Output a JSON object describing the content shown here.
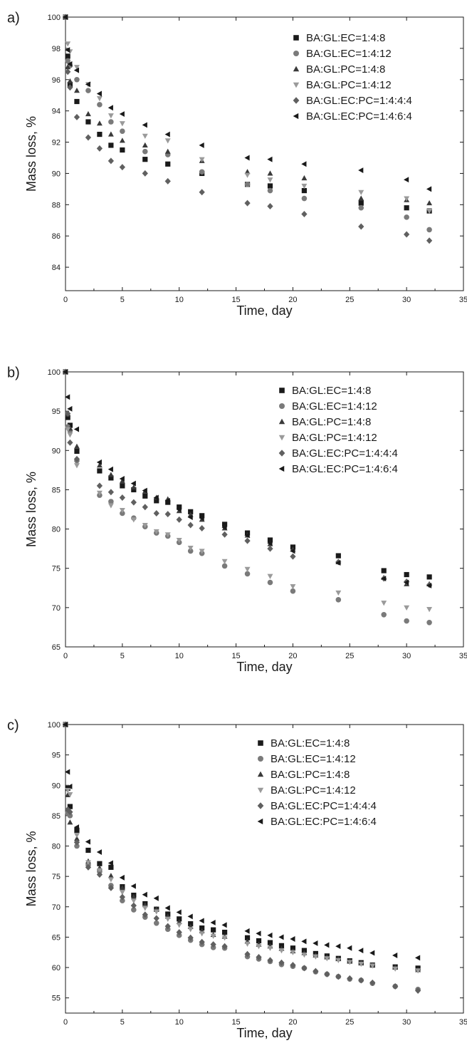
{
  "chart_data": [
    {
      "panel": "a)",
      "type": "scatter",
      "title": "",
      "xlabel": "Time, day",
      "ylabel": "Mass loss, %",
      "xlim": [
        0,
        35
      ],
      "ylim": [
        82.5,
        100
      ],
      "xticks": [
        0,
        5,
        10,
        15,
        20,
        25,
        30,
        35
      ],
      "yticks": [
        84,
        86,
        88,
        90,
        92,
        94,
        96,
        98,
        100
      ],
      "grid": false,
      "legend_position": "top-right",
      "series": [
        {
          "name": "BA:GL:EC=1:4:8",
          "marker": "square",
          "color": "#1a1a1a",
          "x": [
            0,
            0.2,
            0.4,
            1,
            2,
            3,
            4,
            5,
            7,
            9,
            12,
            16,
            18,
            21,
            26,
            30,
            32
          ],
          "y": [
            100,
            97.5,
            95.7,
            94.6,
            93.3,
            92.5,
            91.8,
            91.5,
            90.9,
            90.6,
            90.0,
            89.3,
            89.2,
            88.9,
            88.1,
            87.8,
            87.6
          ]
        },
        {
          "name": "BA:GL:EC=1:4:12",
          "marker": "circle",
          "color": "#7a7a7a",
          "x": [
            0,
            0.2,
            0.4,
            1,
            2,
            3,
            4,
            5,
            7,
            9,
            12,
            16,
            18,
            21,
            26,
            30,
            32
          ],
          "y": [
            100,
            97.2,
            96.9,
            96.0,
            95.3,
            94.4,
            93.3,
            92.7,
            91.4,
            91.2,
            90.1,
            89.3,
            88.9,
            88.4,
            87.8,
            87.2,
            86.4
          ]
        },
        {
          "name": "BA:GL:PC=1:4:8",
          "marker": "triangle-up",
          "color": "#3a3a3a",
          "x": [
            0,
            0.2,
            0.4,
            1,
            2,
            3,
            4,
            5,
            7,
            9,
            12,
            16,
            18,
            21,
            26,
            30,
            32
          ],
          "y": [
            100,
            96.8,
            95.9,
            95.3,
            93.8,
            93.2,
            92.5,
            92.1,
            91.8,
            91.4,
            90.8,
            90.1,
            90.0,
            89.7,
            88.4,
            88.3,
            88.1
          ]
        },
        {
          "name": "BA:GL:PC=1:4:12",
          "marker": "triangle-down",
          "color": "#9a9a9a",
          "x": [
            0,
            0.2,
            0.4,
            1,
            2,
            3,
            4,
            5,
            7,
            9,
            12,
            16,
            18,
            21,
            26,
            30,
            32
          ],
          "y": [
            100,
            98.3,
            97.8,
            96.8,
            95.7,
            94.8,
            93.7,
            93.2,
            92.4,
            92.1,
            90.9,
            89.9,
            89.6,
            89.2,
            88.8,
            88.4,
            87.6
          ]
        },
        {
          "name": "BA:GL:EC:PC=1:4:4:4",
          "marker": "diamond",
          "color": "#606060",
          "x": [
            0,
            0.2,
            0.4,
            1,
            2,
            3,
            4,
            5,
            7,
            9,
            12,
            16,
            18,
            21,
            26,
            30,
            32
          ],
          "y": [
            100,
            96.5,
            95.5,
            93.6,
            92.3,
            91.6,
            90.8,
            90.4,
            90.0,
            89.5,
            88.8,
            88.1,
            87.9,
            87.4,
            86.6,
            86.1,
            85.7
          ]
        },
        {
          "name": "BA:GL:EC:PC=1:4:6:4",
          "marker": "triangle-left",
          "color": "#1a1a1a",
          "x": [
            0,
            0.2,
            0.4,
            1,
            2,
            3,
            4,
            5,
            7,
            9,
            12,
            16,
            18,
            21,
            26,
            30,
            32
          ],
          "y": [
            100,
            97.9,
            97.0,
            96.6,
            95.7,
            95.1,
            94.2,
            93.8,
            93.1,
            92.5,
            91.8,
            91.0,
            90.9,
            90.6,
            90.2,
            89.6,
            89.0
          ]
        }
      ]
    },
    {
      "panel": "b)",
      "type": "scatter",
      "title": "",
      "xlabel": "Time, day",
      "ylabel": "Mass loss, %",
      "xlim": [
        0,
        35
      ],
      "ylim": [
        65,
        100
      ],
      "xticks": [
        0,
        5,
        10,
        15,
        20,
        25,
        30,
        35
      ],
      "yticks": [
        65,
        70,
        75,
        80,
        85,
        90,
        95,
        100
      ],
      "grid": false,
      "legend_position": "top-right",
      "series": [
        {
          "name": "BA:GL:EC=1:4:8",
          "marker": "square",
          "color": "#1a1a1a",
          "x": [
            0,
            0.2,
            0.4,
            1,
            3,
            4,
            5,
            6,
            7,
            8,
            9,
            10,
            11,
            12,
            14,
            16,
            18,
            20,
            24,
            28,
            30,
            32
          ],
          "y": [
            100,
            94.2,
            93.2,
            89.9,
            87.4,
            86.5,
            85.5,
            85.0,
            84.2,
            83.6,
            83.4,
            82.8,
            82.2,
            81.7,
            80.6,
            79.5,
            78.6,
            77.7,
            76.6,
            74.7,
            74.2,
            73.9
          ]
        },
        {
          "name": "BA:GL:EC=1:4:12",
          "marker": "circle",
          "color": "#7a7a7a",
          "x": [
            0,
            0.2,
            0.4,
            1,
            3,
            4,
            5,
            6,
            7,
            8,
            9,
            10,
            11,
            12,
            14,
            16,
            18,
            20,
            24,
            28,
            30,
            32
          ],
          "y": [
            100,
            93.0,
            92.5,
            88.7,
            84.3,
            83.5,
            82.0,
            81.4,
            80.3,
            79.5,
            79.1,
            78.3,
            77.2,
            76.9,
            75.3,
            74.3,
            73.2,
            72.1,
            71.0,
            69.1,
            68.3,
            68.1
          ]
        },
        {
          "name": "BA:GL:PC=1:4:8",
          "marker": "triangle-up",
          "color": "#3a3a3a",
          "x": [
            0,
            0.2,
            0.4,
            1,
            3,
            4,
            5,
            6,
            7,
            8,
            9,
            10,
            11,
            12,
            14,
            16,
            18,
            20,
            24,
            28,
            30,
            32
          ],
          "y": [
            100,
            94.6,
            92.8,
            90.5,
            88.1,
            86.9,
            86.1,
            85.3,
            84.8,
            84.0,
            83.8,
            82.3,
            81.8,
            81.2,
            80.1,
            79.2,
            78.1,
            77.4,
            75.8,
            73.8,
            73.0,
            73.0
          ]
        },
        {
          "name": "BA:GL:PC=1:4:12",
          "marker": "triangle-down",
          "color": "#9a9a9a",
          "x": [
            0,
            0.2,
            0.4,
            1,
            3,
            4,
            5,
            6,
            7,
            8,
            9,
            10,
            11,
            12,
            14,
            16,
            18,
            20,
            24,
            28,
            30,
            32
          ],
          "y": [
            100,
            92.7,
            92.0,
            88.1,
            84.6,
            83.0,
            82.4,
            81.2,
            80.5,
            79.7,
            79.3,
            78.6,
            77.6,
            77.2,
            75.9,
            74.9,
            74.0,
            72.7,
            71.9,
            70.6,
            70.0,
            69.8
          ]
        },
        {
          "name": "BA:GL:EC:PC=1:4:4:4",
          "marker": "diamond",
          "color": "#606060",
          "x": [
            0,
            0.2,
            0.4,
            1,
            3,
            4,
            5,
            6,
            7,
            8,
            9,
            10,
            11,
            12,
            14,
            16,
            18,
            20,
            24,
            28,
            30,
            32
          ],
          "y": [
            100,
            94.7,
            91.0,
            88.9,
            85.5,
            84.7,
            84.0,
            83.4,
            82.8,
            82.0,
            81.9,
            81.2,
            80.5,
            80.1,
            79.3,
            78.5,
            77.5,
            76.5,
            75.8,
            73.7,
            73.3,
            72.9
          ]
        },
        {
          "name": "BA:GL:EC:PC=1:4:6:4",
          "marker": "triangle-left",
          "color": "#1a1a1a",
          "x": [
            0,
            0.2,
            0.4,
            1,
            3,
            4,
            5,
            6,
            7,
            8,
            9,
            10,
            11,
            12,
            14,
            16,
            18,
            20,
            24,
            28,
            30,
            32
          ],
          "y": [
            100,
            96.8,
            95.3,
            92.7,
            88.5,
            87.6,
            86.4,
            85.8,
            84.9,
            84.0,
            83.6,
            82.5,
            81.5,
            81.4,
            80.2,
            79.2,
            78.2,
            77.2,
            75.7,
            73.7,
            73.2,
            72.8
          ]
        }
      ]
    },
    {
      "panel": "c)",
      "type": "scatter",
      "title": "",
      "xlabel": "Time, day",
      "ylabel": "Mass loss, %",
      "xlim": [
        0,
        35
      ],
      "ylim": [
        52.5,
        100
      ],
      "xticks": [
        0,
        5,
        10,
        15,
        20,
        25,
        30,
        35
      ],
      "yticks": [
        55,
        60,
        65,
        70,
        75,
        80,
        85,
        90,
        95,
        100
      ],
      "grid": false,
      "legend_position": "top-right",
      "series": [
        {
          "name": "BA:GL:EC=1:4:8",
          "marker": "square",
          "color": "#1a1a1a",
          "x": [
            0,
            0.2,
            0.4,
            1,
            2,
            3,
            4,
            5,
            6,
            7,
            8,
            9,
            10,
            11,
            12,
            13,
            14,
            16,
            17,
            18,
            19,
            20,
            21,
            22,
            23,
            24,
            25,
            26,
            27,
            29,
            31
          ],
          "y": [
            100,
            89.5,
            86.5,
            82.6,
            79.3,
            77.1,
            76.5,
            73.3,
            71.9,
            70.5,
            69.6,
            68.8,
            68.0,
            67.2,
            66.5,
            66.2,
            65.8,
            64.9,
            64.4,
            64.1,
            63.6,
            63.2,
            62.8,
            62.3,
            61.9,
            61.5,
            61.1,
            60.8,
            60.4,
            60.1,
            59.9
          ]
        },
        {
          "name": "BA:GL:EC=1:4:12",
          "marker": "circle",
          "color": "#7a7a7a",
          "x": [
            0,
            0.2,
            0.4,
            1,
            2,
            3,
            4,
            5,
            6,
            7,
            8,
            9,
            10,
            11,
            12,
            13,
            14,
            16,
            17,
            18,
            19,
            20,
            21,
            22,
            23,
            24,
            25,
            26,
            27,
            29,
            31
          ],
          "y": [
            100,
            85.5,
            85.0,
            80.0,
            76.9,
            75.8,
            73.5,
            71.0,
            69.5,
            68.3,
            67.3,
            66.3,
            65.3,
            64.5,
            63.8,
            63.3,
            63.2,
            61.8,
            61.4,
            61.0,
            60.5,
            60.2,
            59.9,
            59.3,
            58.9,
            58.5,
            58.1,
            57.9,
            57.4,
            56.9,
            56.4
          ]
        },
        {
          "name": "BA:GL:PC=1:4:8",
          "marker": "triangle-up",
          "color": "#3a3a3a",
          "x": [
            0,
            0.2,
            0.4,
            1,
            2,
            3,
            4,
            5,
            6,
            7,
            8,
            9,
            10,
            11,
            12,
            13,
            14,
            16,
            17,
            18,
            19,
            20,
            21,
            22,
            23,
            24,
            25,
            26,
            27,
            29,
            31
          ],
          "y": [
            100,
            88.4,
            83.9,
            81.2,
            77.5,
            76.4,
            75.1,
            73.1,
            71.6,
            70.3,
            69.6,
            68.4,
            67.5,
            66.7,
            66.0,
            65.4,
            65.1,
            64.3,
            63.8,
            63.5,
            63.1,
            62.7,
            62.4,
            62.0,
            61.7,
            61.4,
            61.0,
            60.7,
            60.4,
            60.0,
            59.6
          ]
        },
        {
          "name": "BA:GL:PC=1:4:12",
          "marker": "triangle-down",
          "color": "#9a9a9a",
          "x": [
            0,
            0.2,
            0.4,
            1,
            2,
            3,
            4,
            5,
            6,
            7,
            8,
            9,
            10,
            11,
            12,
            13,
            14,
            16,
            17,
            18,
            19,
            20,
            21,
            22,
            23,
            24,
            25,
            26,
            27,
            29,
            31
          ],
          "y": [
            100,
            89.2,
            88.5,
            81.8,
            77.3,
            76.0,
            74.5,
            72.4,
            71.0,
            69.8,
            69.2,
            68.0,
            67.0,
            66.3,
            65.6,
            65.2,
            64.9,
            63.9,
            63.5,
            63.2,
            62.8,
            62.5,
            62.1,
            61.8,
            61.5,
            61.2,
            60.9,
            60.6,
            60.3,
            59.8,
            59.5
          ]
        },
        {
          "name": "BA:GL:EC:PC=1:4:4:4",
          "marker": "diamond",
          "color": "#606060",
          "x": [
            0,
            0.2,
            0.4,
            1,
            2,
            3,
            4,
            5,
            6,
            7,
            8,
            9,
            10,
            11,
            12,
            13,
            14,
            16,
            17,
            18,
            19,
            20,
            21,
            22,
            23,
            24,
            25,
            26,
            27,
            29,
            31
          ],
          "y": [
            100,
            86.0,
            85.6,
            80.6,
            76.5,
            75.3,
            73.1,
            71.6,
            70.2,
            68.7,
            68.1,
            66.8,
            65.8,
            64.9,
            64.2,
            63.8,
            63.5,
            62.2,
            61.7,
            61.2,
            60.8,
            60.4,
            59.9,
            59.4,
            58.9,
            58.5,
            58.2,
            57.9,
            57.5,
            56.9,
            56.2
          ]
        },
        {
          "name": "BA:GL:EC:PC=1:4:6:4",
          "marker": "triangle-left",
          "color": "#1a1a1a",
          "x": [
            0,
            0.2,
            0.4,
            1,
            2,
            3,
            4,
            5,
            6,
            7,
            8,
            9,
            10,
            11,
            12,
            13,
            14,
            16,
            17,
            18,
            19,
            20,
            21,
            22,
            23,
            24,
            25,
            26,
            27,
            29,
            31
          ],
          "y": [
            100,
            92.2,
            89.8,
            83.1,
            80.7,
            79.0,
            77.2,
            74.8,
            73.4,
            72.0,
            71.4,
            69.8,
            69.1,
            68.4,
            67.7,
            67.4,
            67.0,
            66.0,
            65.6,
            65.3,
            65.0,
            64.7,
            64.3,
            64.0,
            63.7,
            63.5,
            63.2,
            62.8,
            62.4,
            62.0,
            61.6
          ]
        }
      ]
    }
  ]
}
